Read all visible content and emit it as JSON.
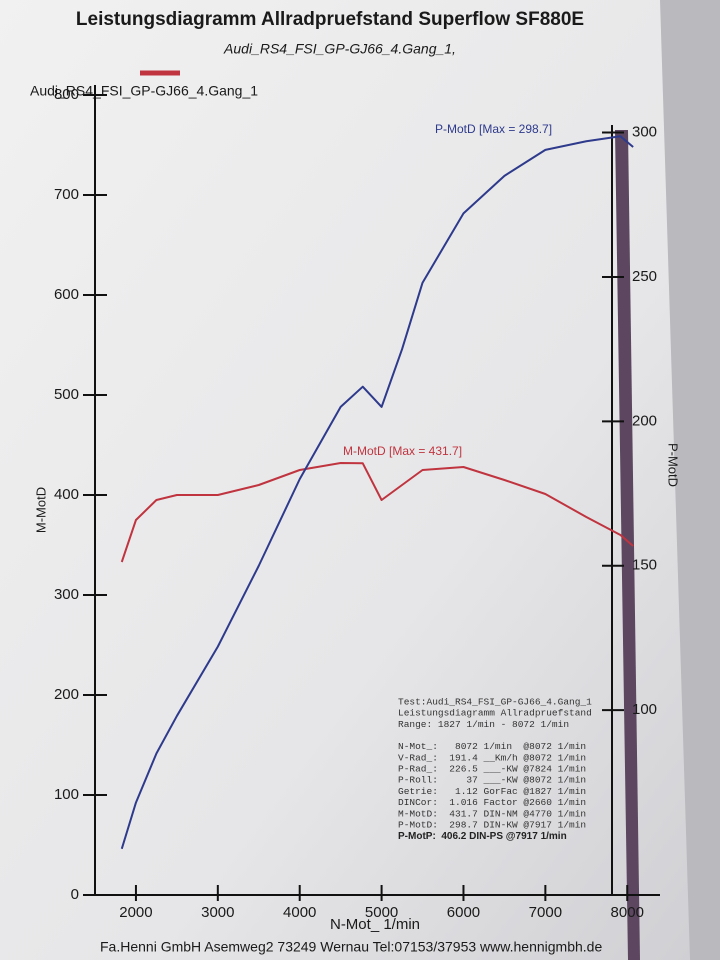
{
  "chart_data": {
    "type": "line",
    "title": "Leistungsdiagramm Allradpruefstand Superflow SF880E",
    "subtitle": "Audi_RS4_FSI_GP-GJ66_4.Gang_1,",
    "xlabel": "N-Mot_ 1/min",
    "ylabel": "M-MotD",
    "y2label": "P-MotD",
    "x": [
      1827,
      2000,
      2250,
      2500,
      3000,
      3500,
      4000,
      4500,
      4770,
      5000,
      5250,
      5500,
      6000,
      6500,
      7000,
      7500,
      7917,
      8072
    ],
    "series": [
      {
        "name": "Audi_RS4_FSI_GP-GJ66_4.Gang_1",
        "color": "#c0343f",
        "values": [
          333,
          375,
          395,
          400,
          400,
          410,
          425,
          432,
          431.7,
          395,
          410,
          425,
          428,
          415,
          401,
          378,
          360,
          349
        ]
      },
      {
        "name": "P-MotD",
        "color": "#2e3a8c",
        "axis": "y2",
        "values": [
          52,
          68,
          85,
          98,
          122,
          150,
          180,
          205,
          212,
          205,
          225,
          248,
          272,
          285,
          294,
          297,
          298.7,
          295
        ]
      }
    ],
    "annotations": [
      "P-MotD [Max = 298.7]",
      "M-MotD [Max = 431.7]"
    ],
    "xlim": [
      1500,
      8400
    ],
    "xticks": [
      2000,
      3000,
      4000,
      5000,
      6000,
      7000,
      8000
    ],
    "ylim": [
      0,
      800
    ],
    "yticks": [
      0,
      100,
      200,
      300,
      400,
      500,
      600,
      700,
      800
    ],
    "y2lim": [
      36,
      313
    ],
    "y2ticks": [
      100,
      150,
      200,
      250,
      300
    ],
    "info": [
      "Test:Audi_RS4_FSI_GP-GJ66_4.Gang_1",
      "Leistungsdiagramm Allradpruefstand",
      "Range: 1827 1/min - 8072 1/min",
      "N-Mot_:   8072 1/min  @8072 1/min",
      "V-Rad_:  191.4 __Km/h @8072 1/min",
      "P-Rad_:  226.5 ___-KW @7824 1/min",
      "P-Roll:     37 ___-KW @8072 1/min",
      "Getrie:   1.12 GorFac @1827 1/min",
      "DINCor:  1.016 Factor @2660 1/min",
      "M-MotD:  431.7 DIN-NM @4770 1/min",
      "P-MotD:  298.7 DIN-KW @7917 1/min",
      "P-MotP:  406.2 DIN-PS @7917 1/min"
    ],
    "footer": "Fa.Henni GmbH  Asemweg2  73249 Wernau  Tel:07153/37953  www.hennigmbh.de"
  }
}
